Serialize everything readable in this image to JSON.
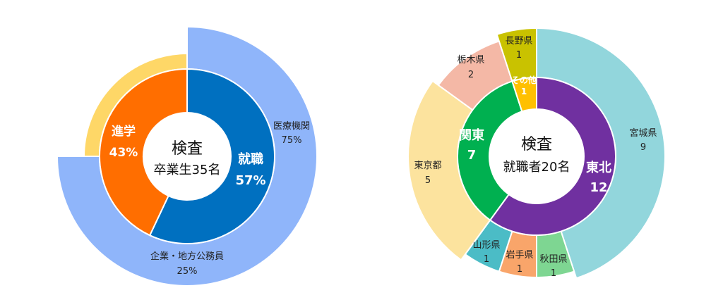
{
  "chart_data": [
    {
      "type": "pie",
      "center": {
        "title": "検査",
        "subtitle": "卒業生35名"
      },
      "inner": [
        {
          "label": "就職",
          "value": "57%",
          "share": 57,
          "color": "#0070C0"
        },
        {
          "label": "進学",
          "value": "43%",
          "share": 43,
          "color": "#FF6E00"
        }
      ],
      "outer": [
        {
          "label": "医療機関",
          "value": "75%",
          "share": 75,
          "color": "#8FB5FA"
        },
        {
          "label": "企業・地方公務員",
          "value": "25%",
          "share": 25,
          "color": "#FED767"
        }
      ]
    },
    {
      "type": "pie",
      "center": {
        "title": "検査",
        "subtitle": "就職者20名"
      },
      "inner": [
        {
          "label": "東北",
          "value": "12",
          "share": 12,
          "color": "#7030A0"
        },
        {
          "label": "関東",
          "value": "7",
          "share": 7,
          "color": "#00B050"
        },
        {
          "label": "その他",
          "value": "1",
          "share": 1,
          "color": "#FFC000"
        }
      ],
      "outer": [
        {
          "label": "宮城県",
          "value": "9",
          "share": 9,
          "color": "#92D6DC"
        },
        {
          "label": "秋田県",
          "value": "1",
          "share": 1,
          "color": "#7ED692"
        },
        {
          "label": "岩手県",
          "value": "1",
          "share": 1,
          "color": "#F9A56A"
        },
        {
          "label": "山形県",
          "value": "1",
          "share": 1,
          "color": "#4BBCC6"
        },
        {
          "label": "東京都",
          "value": "5",
          "share": 5,
          "color": "#FCE39E"
        },
        {
          "label": "栃木県",
          "value": "2",
          "share": 2,
          "color": "#F4B8A6"
        },
        {
          "label": "長野県",
          "value": "1",
          "share": 1,
          "color": "#C9C200"
        }
      ]
    }
  ]
}
